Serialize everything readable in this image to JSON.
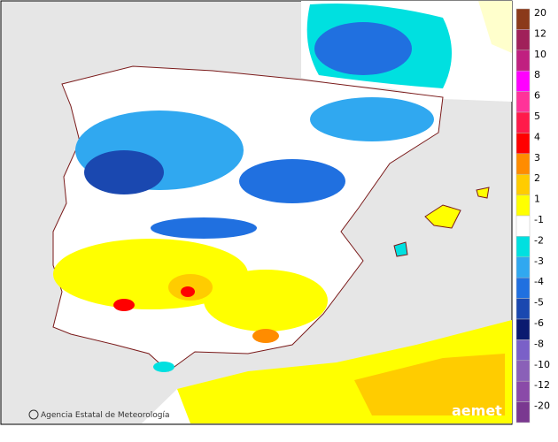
{
  "credit": "Agencia Estatal de Meteorología",
  "logo": "aemet",
  "legend": [
    {
      "label": "20",
      "color": "#8b3a1a"
    },
    {
      "label": "12",
      "color": "#a0205a"
    },
    {
      "label": "10",
      "color": "#c02080"
    },
    {
      "label": "8",
      "color": "#ff00ff"
    },
    {
      "label": "6",
      "color": "#ff3399"
    },
    {
      "label": "5",
      "color": "#ff1a4a"
    },
    {
      "label": "4",
      "color": "#ff0000"
    },
    {
      "label": "3",
      "color": "#ff8c00"
    },
    {
      "label": "2",
      "color": "#ffcc00"
    },
    {
      "label": "1",
      "color": "#ffff00"
    },
    {
      "label": "-1",
      "color": "#ffffff"
    },
    {
      "label": "-2",
      "color": "#00e0e0"
    },
    {
      "label": "-3",
      "color": "#30a8f0"
    },
    {
      "label": "-4",
      "color": "#2070e0"
    },
    {
      "label": "-5",
      "color": "#1a48b0"
    },
    {
      "label": "-6",
      "color": "#0a1a70"
    },
    {
      "label": "-8",
      "color": "#7a60c8"
    },
    {
      "label": "-10",
      "color": "#8a60b8"
    },
    {
      "label": "-12",
      "color": "#8a4aa8"
    },
    {
      "label": "-20",
      "color": "#7a3890"
    }
  ]
}
